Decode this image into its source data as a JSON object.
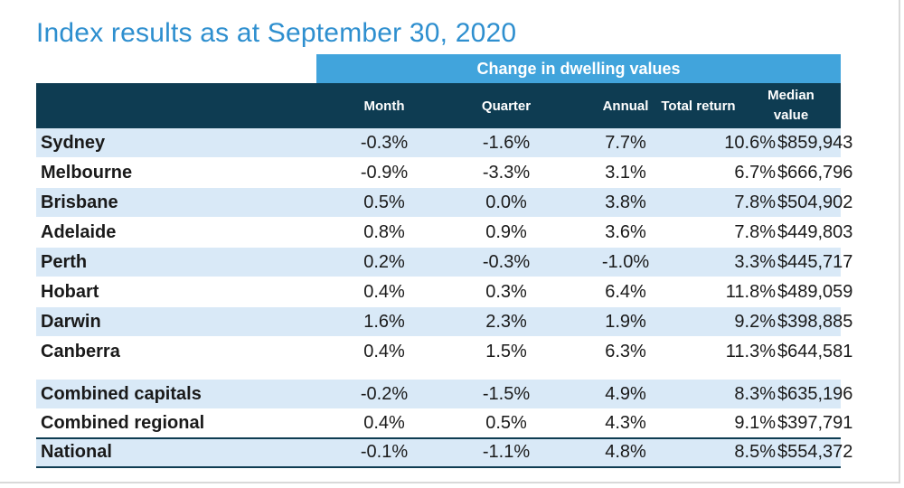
{
  "title": "Index results as at September 30, 2020",
  "band_label": "Change in dwelling values",
  "headers": {
    "month": "Month",
    "quarter": "Quarter",
    "annual": "Annual",
    "total_return": "Total return",
    "median_line1": "Median",
    "median_line2": "value"
  },
  "rows": [
    {
      "name": "Sydney",
      "month": "-0.3%",
      "quarter": "-1.6%",
      "annual": "7.7%",
      "total": "10.6%",
      "median": "$859,943"
    },
    {
      "name": "Melbourne",
      "month": "-0.9%",
      "quarter": "-3.3%",
      "annual": "3.1%",
      "total": "6.7%",
      "median": "$666,796"
    },
    {
      "name": "Brisbane",
      "month": "0.5%",
      "quarter": "0.0%",
      "annual": "3.8%",
      "total": "7.8%",
      "median": "$504,902"
    },
    {
      "name": "Adelaide",
      "month": "0.8%",
      "quarter": "0.9%",
      "annual": "3.6%",
      "total": "7.8%",
      "median": "$449,803"
    },
    {
      "name": "Perth",
      "month": "0.2%",
      "quarter": "-0.3%",
      "annual": "-1.0%",
      "total": "3.3%",
      "median": "$445,717"
    },
    {
      "name": "Hobart",
      "month": "0.4%",
      "quarter": "0.3%",
      "annual": "6.4%",
      "total": "11.8%",
      "median": "$489,059"
    },
    {
      "name": "Darwin",
      "month": "1.6%",
      "quarter": "2.3%",
      "annual": "1.9%",
      "total": "9.2%",
      "median": "$398,885"
    },
    {
      "name": "Canberra",
      "month": "0.4%",
      "quarter": "1.5%",
      "annual": "6.3%",
      "total": "11.3%",
      "median": "$644,581"
    },
    {
      "name": "Combined capitals",
      "month": "-0.2%",
      "quarter": "-1.5%",
      "annual": "4.9%",
      "total": "8.3%",
      "median": "$635,196"
    },
    {
      "name": "Combined regional",
      "month": "0.4%",
      "quarter": "0.5%",
      "annual": "4.3%",
      "total": "9.1%",
      "median": "$397,791"
    },
    {
      "name": "National",
      "month": "-0.1%",
      "quarter": "-1.1%",
      "annual": "4.8%",
      "total": "8.5%",
      "median": "$554,372"
    }
  ],
  "colors": {
    "title": "#2e8fcf",
    "band": "#41a4dc",
    "header": "#0e3c52",
    "row_shade": "#d9e9f7"
  }
}
